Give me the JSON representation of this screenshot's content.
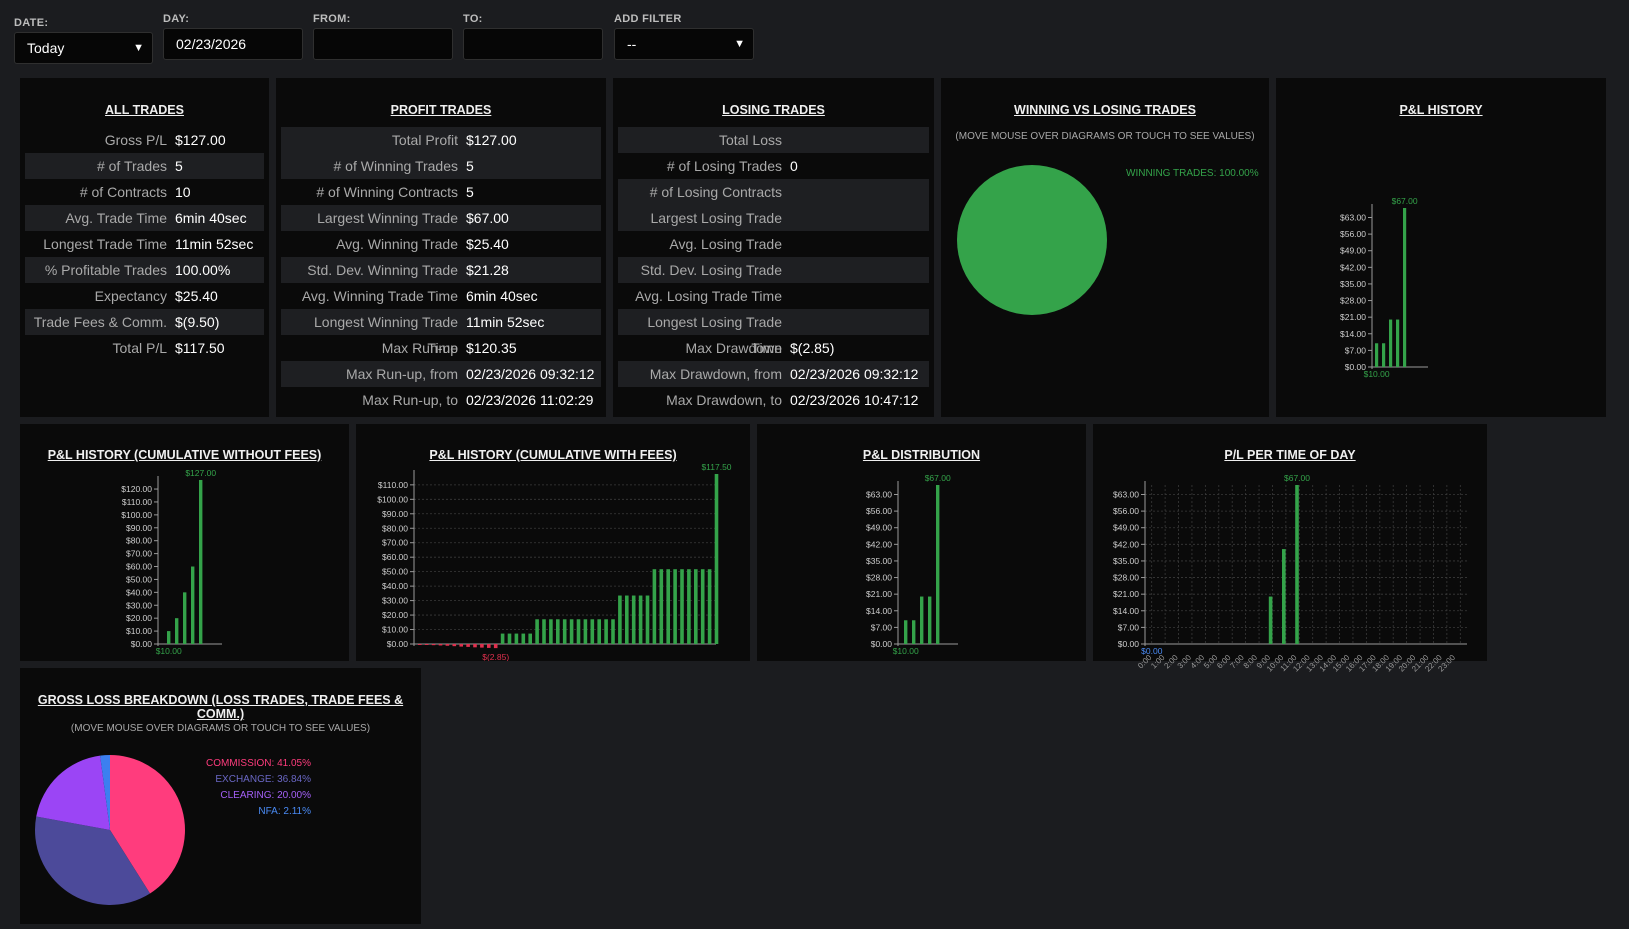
{
  "filters": {
    "date": {
      "label": "DATE:",
      "value": "Today"
    },
    "day": {
      "label": "DAY:",
      "value": "02/23/2026"
    },
    "from": {
      "label": "FROM:",
      "value": ""
    },
    "to": {
      "label": "TO:",
      "value": ""
    },
    "add_filter": {
      "label": "ADD FILTER",
      "value": "--"
    }
  },
  "all_trades": {
    "title": "ALL TRADES",
    "rows": [
      {
        "label": "Gross P/L",
        "value": "$127.00"
      },
      {
        "label": "# of Trades",
        "value": "5"
      },
      {
        "label": "# of Contracts",
        "value": "10"
      },
      {
        "label": "Avg. Trade Time",
        "value": "6min 40sec"
      },
      {
        "label": "Longest Trade Time",
        "value": "11min 52sec"
      },
      {
        "label": "% Profitable Trades",
        "value": "100.00%"
      },
      {
        "label": "Expectancy",
        "value": "$25.40"
      },
      {
        "label": "Trade Fees & Comm.",
        "value": "$(9.50)"
      },
      {
        "label": "Total P/L",
        "value": "$117.50"
      }
    ]
  },
  "profit_trades": {
    "title": "PROFIT TRADES",
    "rows": [
      {
        "label": "Total Profit",
        "value": "$127.00"
      },
      {
        "label": "# of Winning Trades",
        "value": "5"
      },
      {
        "label": "# of Winning Contracts",
        "value": "5"
      },
      {
        "label": "Largest Winning Trade",
        "value": "$67.00"
      },
      {
        "label": "Avg. Winning Trade",
        "value": "$25.40"
      },
      {
        "label": "Std. Dev. Winning Trade",
        "value": "$21.28"
      },
      {
        "label": "Avg. Winning Trade Time",
        "value": "6min 40sec"
      },
      {
        "label": "Longest Winning Trade Time",
        "value": "11min 52sec"
      },
      {
        "label": "Max Run-up",
        "value": "$120.35"
      },
      {
        "label": "Max Run-up, from",
        "value": "02/23/2026 09:32:12"
      },
      {
        "label": "Max Run-up, to",
        "value": "02/23/2026 11:02:29"
      }
    ]
  },
  "losing_trades": {
    "title": "LOSING TRADES",
    "rows": [
      {
        "label": "Total Loss",
        "value": ""
      },
      {
        "label": "# of Losing Trades",
        "value": "0"
      },
      {
        "label": "# of Losing Contracts",
        "value": ""
      },
      {
        "label": "Largest Losing Trade",
        "value": ""
      },
      {
        "label": "Avg. Losing Trade",
        "value": ""
      },
      {
        "label": "Std. Dev. Losing Trade",
        "value": ""
      },
      {
        "label": "Avg. Losing Trade Time",
        "value": ""
      },
      {
        "label": "Longest Losing Trade Time",
        "value": ""
      },
      {
        "label": "Max Drawdown",
        "value": "$(2.85)"
      },
      {
        "label": "Max Drawdown, from",
        "value": "02/23/2026 09:32:12"
      },
      {
        "label": "Max Drawdown, to",
        "value": "02/23/2026 10:47:12"
      }
    ]
  },
  "winning_vs_losing": {
    "title": "WINNING VS LOSING TRADES",
    "subtitle": "(MOVE MOUSE OVER DIAGRAMS OR TOUCH TO SEE VALUES)",
    "legend": "WINNING TRADES: 100.00%"
  },
  "gross_loss": {
    "title": "GROSS LOSS BREAKDOWN (LOSS TRADES, TRADE FEES & COMM.)",
    "subtitle": "(MOVE MOUSE OVER DIAGRAMS OR TOUCH TO SEE VALUES)",
    "legend": [
      "COMMISSION: 41.05%",
      "EXCHANGE: 36.84%",
      "CLEARING: 20.00%",
      "NFA: 2.11%"
    ]
  },
  "chart_titles": {
    "pl_history": "P&L HISTORY",
    "cum_without": "P&L HISTORY (CUMULATIVE WITHOUT FEES)",
    "cum_with": "P&L HISTORY (CUMULATIVE WITH FEES)",
    "distribution": "P&L DISTRIBUTION",
    "time_of_day": "P/L PER TIME OF DAY"
  },
  "colors": {
    "green": "#34a34a",
    "red": "#e0304e",
    "commission": "#ff3c7d",
    "exchange": "#4c4a9a",
    "clearing": "#9b45f5",
    "nfa": "#3c7ff0"
  },
  "chart_data": [
    {
      "id": "pl_history",
      "type": "bar",
      "ylim": [
        0,
        67
      ],
      "yticks": [
        "$0.00",
        "$7.00",
        "$14.00",
        "$21.00",
        "$28.00",
        "$35.00",
        "$42.00",
        "$49.00",
        "$56.00",
        "$63.00"
      ],
      "ytick_values": [
        0,
        7,
        14,
        21,
        28,
        35,
        42,
        49,
        56,
        63
      ],
      "values": [
        10,
        10,
        20,
        20,
        67
      ],
      "max_label": "$67.00",
      "min_label": "$10.00"
    },
    {
      "id": "cum_without",
      "type": "bar",
      "ylim": [
        0,
        127
      ],
      "yticks": [
        "$0.00",
        "$10.00",
        "$20.00",
        "$30.00",
        "$40.00",
        "$50.00",
        "$60.00",
        "$70.00",
        "$80.00",
        "$90.00",
        "$100.00",
        "$110.00",
        "$120.00"
      ],
      "ytick_values": [
        0,
        10,
        20,
        30,
        40,
        50,
        60,
        70,
        80,
        90,
        100,
        110,
        120
      ],
      "values": [
        10,
        20,
        40,
        60,
        127
      ],
      "max_label": "$127.00",
      "min_label": "$10.00"
    },
    {
      "id": "cum_with",
      "type": "bar",
      "ylim": [
        -2.85,
        117.5
      ],
      "yticks": [
        "$0.00",
        "$10.00",
        "$20.00",
        "$30.00",
        "$40.00",
        "$50.00",
        "$60.00",
        "$70.00",
        "$80.00",
        "$90.00",
        "$100.00",
        "$110.00"
      ],
      "ytick_values": [
        0,
        10,
        20,
        30,
        40,
        50,
        60,
        70,
        80,
        90,
        100,
        110
      ],
      "values": [
        -0.3,
        -0.5,
        -0.8,
        -1.0,
        -1.2,
        -1.5,
        -1.8,
        -2.0,
        -2.3,
        -2.5,
        -2.7,
        -2.85,
        7.2,
        7.2,
        7.2,
        7.2,
        7.2,
        17.1,
        17.1,
        17.1,
        17.1,
        17.1,
        17.1,
        17.1,
        17.1,
        17.1,
        17.1,
        17.1,
        17.1,
        33.5,
        33.5,
        33.5,
        33.5,
        33.5,
        51.7,
        51.7,
        51.7,
        51.7,
        51.7,
        51.7,
        51.7,
        51.7,
        51.7,
        117.5
      ],
      "max_label": "$117.50",
      "min_label": "$(2.85)"
    },
    {
      "id": "distribution",
      "type": "bar",
      "ylim": [
        0,
        67
      ],
      "yticks": [
        "$0.00",
        "$7.00",
        "$14.00",
        "$21.00",
        "$28.00",
        "$35.00",
        "$42.00",
        "$49.00",
        "$56.00",
        "$63.00"
      ],
      "ytick_values": [
        0,
        7,
        14,
        21,
        28,
        35,
        42,
        49,
        56,
        63
      ],
      "values": [
        10,
        10,
        20,
        20,
        67
      ],
      "max_label": "$67.00",
      "min_label": "$10.00"
    },
    {
      "id": "time_of_day",
      "type": "bar",
      "ylim": [
        0,
        67
      ],
      "yticks": [
        "$0.00",
        "$7.00",
        "$14.00",
        "$21.00",
        "$28.00",
        "$35.00",
        "$42.00",
        "$49.00",
        "$56.00",
        "$63.00"
      ],
      "ytick_values": [
        0,
        7,
        14,
        21,
        28,
        35,
        42,
        49,
        56,
        63
      ],
      "categories": [
        "0:00",
        "1:00",
        "2:00",
        "3:00",
        "4:00",
        "5:00",
        "6:00",
        "7:00",
        "8:00",
        "9:00",
        "10:00",
        "11:00",
        "12:00",
        "13:00",
        "14:00",
        "15:00",
        "16:00",
        "17:00",
        "18:00",
        "19:00",
        "20:00",
        "21:00",
        "22:00",
        "23:00"
      ],
      "values": [
        0,
        0,
        0,
        0,
        0,
        0,
        0,
        0,
        0,
        20,
        40,
        67,
        0,
        0,
        0,
        0,
        0,
        0,
        0,
        0,
        0,
        0,
        0,
        0
      ],
      "max_label": "$67.00",
      "min_label": "$0.00"
    },
    {
      "id": "winning_vs_losing",
      "type": "pie",
      "slices": [
        {
          "name": "WINNING TRADES",
          "value": 100.0
        }
      ]
    },
    {
      "id": "gross_loss",
      "type": "pie",
      "slices": [
        {
          "name": "COMMISSION",
          "value": 41.05
        },
        {
          "name": "EXCHANGE",
          "value": 36.84
        },
        {
          "name": "CLEARING",
          "value": 20.0
        },
        {
          "name": "NFA",
          "value": 2.11
        }
      ]
    }
  ]
}
